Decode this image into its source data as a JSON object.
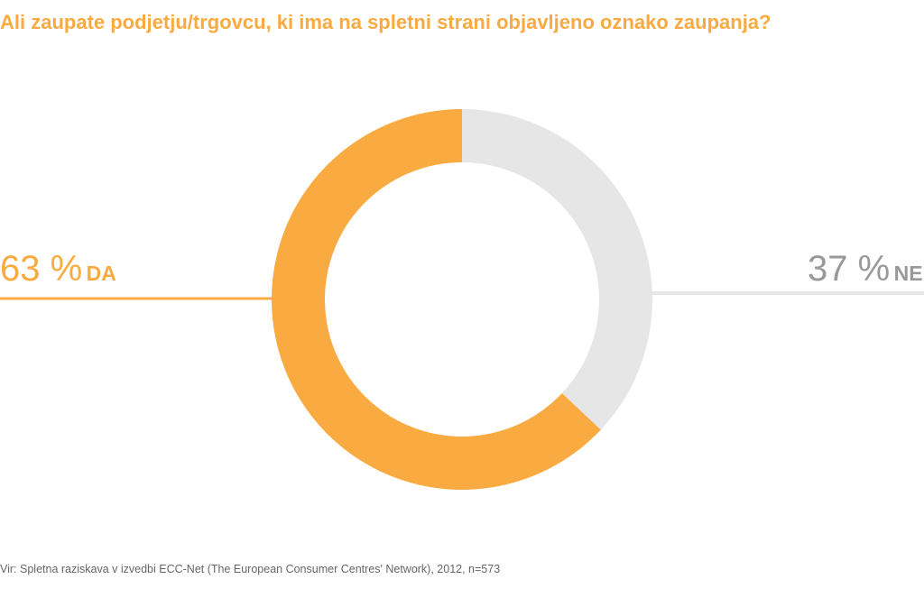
{
  "chart_data": {
    "type": "pie",
    "donut": true,
    "title": "Ali zaupate podjetju/trgovcu, ki ima na spletni strani objavljeno oznako zaupanja?",
    "slices": [
      {
        "label": "DA",
        "value": 63,
        "value_label": "63 %",
        "color": "#F9AA40"
      },
      {
        "label": "NE",
        "value": 37,
        "value_label": "37 %",
        "color": "#E6E6E6"
      }
    ],
    "label_colors": {
      "DA": "#F9AA40",
      "NE": "#999999"
    },
    "source": "Vir: Spletna raziskava v izvedbi ECC-Net (The European Consumer Centres' Network), 2012, n=573"
  }
}
